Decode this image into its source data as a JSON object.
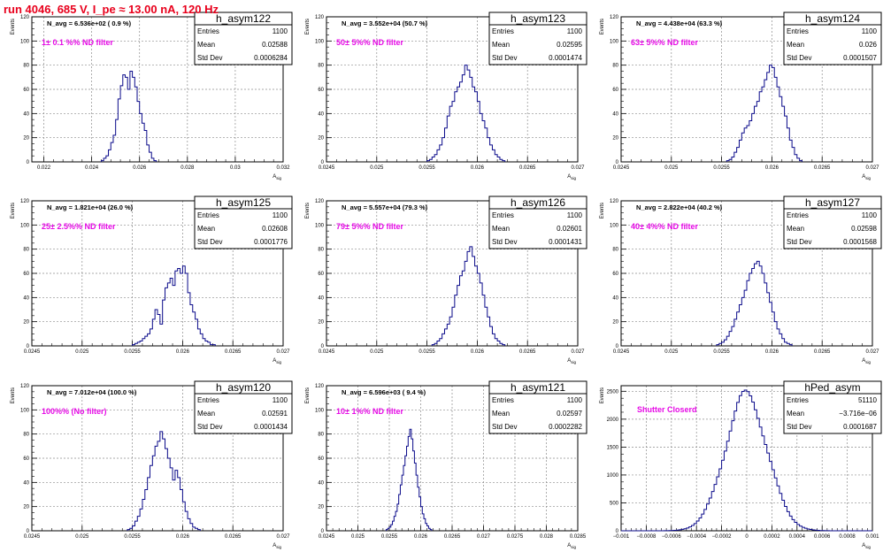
{
  "page_title": "run 4046,   685 V, I_pe ≈ 13.00 nA, 120 Hz",
  "colors": {
    "hist_line": "#0a0a8a",
    "grid": "#8c8c8c",
    "annotation": "#e60ae6",
    "title": "#e8001c"
  },
  "stat_labels": {
    "entries": "Entries",
    "mean": "Mean",
    "std_dev": "Std Dev"
  },
  "ylabel": "Events",
  "xlabel": "A_sig",
  "chart_data": [
    {
      "type": "histogram",
      "name": "h_asym122",
      "entries": "1100",
      "mean": "0.02588",
      "std_dev": "0.0006284",
      "navg_text": "N_avg = 6.536e+02 ( 0.9 %)",
      "annotation": "1± 0.1 %% ND filter",
      "xlim": [
        0.0215,
        0.032
      ],
      "ylim": [
        0,
        120
      ],
      "xticks": [
        0.022,
        0.024,
        0.026,
        0.028,
        0.03,
        0.032
      ],
      "xtick_labels": [
        "0.022",
        "0.024",
        "0.026",
        "0.028",
        "0.03",
        "0.032"
      ],
      "yticks": [
        0,
        20,
        40,
        60,
        80,
        100,
        120
      ],
      "bin_start": 0.0244,
      "bin_width": 0.0001,
      "counts": [
        1,
        3,
        5,
        10,
        16,
        22,
        35,
        52,
        63,
        72,
        70,
        60,
        75,
        70,
        62,
        50,
        40,
        32,
        26,
        14,
        8,
        3,
        1
      ]
    },
    {
      "type": "histogram",
      "name": "h_asym123",
      "entries": "1100",
      "mean": "0.02595",
      "std_dev": "0.0001474",
      "navg_text": "N_avg = 3.552e+04 (50.7 %)",
      "annotation": "50± 5%% ND filter",
      "xlim": [
        0.0245,
        0.027
      ],
      "ylim": [
        0,
        120
      ],
      "xticks": [
        0.0245,
        0.025,
        0.0255,
        0.026,
        0.0265,
        0.027
      ],
      "xtick_labels": [
        "0.0245",
        "0.025",
        "0.0255",
        "0.026",
        "0.0265",
        "0.027"
      ],
      "yticks": [
        0,
        20,
        40,
        60,
        80,
        100,
        120
      ],
      "bin_start": 0.0255,
      "bin_width": 2.5e-05,
      "counts": [
        1,
        2,
        4,
        6,
        10,
        14,
        20,
        28,
        38,
        46,
        50,
        58,
        62,
        66,
        72,
        80,
        76,
        70,
        62,
        58,
        50,
        40,
        34,
        28,
        20,
        14,
        10,
        6,
        4,
        2,
        1
      ]
    },
    {
      "type": "histogram",
      "name": "h_asym124",
      "entries": "1100",
      "mean": "0.026",
      "std_dev": "0.0001507",
      "navg_text": "N_avg = 4.438e+04 (63.3 %)",
      "annotation": "63± 5%% ND filter",
      "xlim": [
        0.0245,
        0.027
      ],
      "ylim": [
        0,
        120
      ],
      "xticks": [
        0.0245,
        0.025,
        0.0255,
        0.026,
        0.0265,
        0.027
      ],
      "xtick_labels": [
        "0.0245",
        "0.025",
        "0.0255",
        "0.026",
        "0.0265",
        "0.027"
      ],
      "yticks": [
        0,
        20,
        40,
        60,
        80,
        100,
        120
      ],
      "bin_start": 0.02555,
      "bin_width": 2.5e-05,
      "counts": [
        1,
        2,
        4,
        8,
        12,
        18,
        24,
        28,
        30,
        34,
        40,
        46,
        50,
        58,
        62,
        68,
        74,
        80,
        78,
        70,
        62,
        54,
        46,
        38,
        28,
        18,
        12,
        6,
        3,
        1
      ]
    },
    {
      "type": "histogram",
      "name": "h_asym125",
      "entries": "1100",
      "mean": "0.02608",
      "std_dev": "0.0001776",
      "navg_text": "N_avg = 1.821e+04 (26.0 %)",
      "annotation": "25± 2.5%% ND filter",
      "xlim": [
        0.0245,
        0.027
      ],
      "ylim": [
        0,
        120
      ],
      "xticks": [
        0.0245,
        0.025,
        0.0255,
        0.026,
        0.0265,
        0.027
      ],
      "xtick_labels": [
        "0.0245",
        "0.025",
        "0.0255",
        "0.026",
        "0.0265",
        "0.027"
      ],
      "yticks": [
        0,
        20,
        40,
        60,
        80,
        100,
        120
      ],
      "bin_start": 0.0255,
      "bin_width": 2.5e-05,
      "counts": [
        1,
        2,
        3,
        4,
        6,
        8,
        10,
        14,
        22,
        30,
        26,
        18,
        38,
        48,
        52,
        56,
        50,
        62,
        64,
        60,
        66,
        60,
        44,
        34,
        28,
        22,
        14,
        10,
        6,
        4,
        3,
        1,
        1
      ]
    },
    {
      "type": "histogram",
      "name": "h_asym126",
      "entries": "1100",
      "mean": "0.02601",
      "std_dev": "0.0001431",
      "navg_text": "N_avg = 5.557e+04 (79.3 %)",
      "annotation": "79± 5%% ND filter",
      "xlim": [
        0.0245,
        0.027
      ],
      "ylim": [
        0,
        120
      ],
      "xticks": [
        0.0245,
        0.025,
        0.0255,
        0.026,
        0.0265,
        0.027
      ],
      "xtick_labels": [
        "0.0245",
        "0.025",
        "0.0255",
        "0.026",
        "0.0265",
        "0.027"
      ],
      "yticks": [
        0,
        20,
        40,
        60,
        80,
        100,
        120
      ],
      "bin_start": 0.02555,
      "bin_width": 2.5e-05,
      "counts": [
        1,
        2,
        4,
        6,
        10,
        14,
        18,
        24,
        32,
        42,
        50,
        58,
        62,
        70,
        78,
        82,
        74,
        66,
        60,
        52,
        42,
        32,
        24,
        16,
        10,
        6,
        4,
        2,
        1
      ]
    },
    {
      "type": "histogram",
      "name": "h_asym127",
      "entries": "1100",
      "mean": "0.02598",
      "std_dev": "0.0001568",
      "navg_text": "N_avg = 2.822e+04 (40.2 %)",
      "annotation": "40± 4%% ND filter",
      "xlim": [
        0.0245,
        0.027
      ],
      "ylim": [
        0,
        120
      ],
      "xticks": [
        0.0245,
        0.025,
        0.0255,
        0.026,
        0.0265,
        0.027
      ],
      "xtick_labels": [
        "0.0245",
        "0.025",
        "0.0255",
        "0.026",
        "0.0265",
        "0.027"
      ],
      "yticks": [
        0,
        20,
        40,
        60,
        80,
        100,
        120
      ],
      "bin_start": 0.02545,
      "bin_width": 2.5e-05,
      "counts": [
        1,
        2,
        3,
        5,
        8,
        12,
        16,
        22,
        28,
        34,
        40,
        46,
        54,
        60,
        64,
        68,
        70,
        66,
        60,
        52,
        44,
        36,
        28,
        20,
        14,
        10,
        6,
        3,
        2,
        1
      ]
    },
    {
      "type": "histogram",
      "name": "h_asym120",
      "entries": "1100",
      "mean": "0.02591",
      "std_dev": "0.0001434",
      "navg_text": "N_avg = 7.012e+04 (100.0 %)",
      "annotation": "100%% (No filter)",
      "xlim": [
        0.0245,
        0.027
      ],
      "ylim": [
        0,
        120
      ],
      "xticks": [
        0.0245,
        0.025,
        0.0255,
        0.026,
        0.0265,
        0.027
      ],
      "xtick_labels": [
        "0.0245",
        "0.025",
        "0.0255",
        "0.026",
        "0.0265",
        "0.027"
      ],
      "yticks": [
        0,
        20,
        40,
        60,
        80,
        100,
        120
      ],
      "bin_start": 0.02545,
      "bin_width": 2.5e-05,
      "counts": [
        1,
        2,
        4,
        8,
        12,
        18,
        26,
        34,
        44,
        54,
        62,
        70,
        74,
        82,
        76,
        68,
        60,
        52,
        42,
        50,
        44,
        34,
        24,
        16,
        10,
        6,
        3,
        2,
        1
      ]
    },
    {
      "type": "histogram",
      "name": "h_asym121",
      "entries": "1100",
      "mean": "0.02597",
      "std_dev": "0.0002282",
      "navg_text": "N_avg = 6.596e+03 ( 9.4 %)",
      "annotation": "10± 1%% ND filter",
      "xlim": [
        0.0245,
        0.0285
      ],
      "ylim": [
        0,
        120
      ],
      "xticks": [
        0.0245,
        0.025,
        0.0255,
        0.026,
        0.0265,
        0.027,
        0.0275,
        0.028,
        0.0285
      ],
      "xtick_labels": [
        "0.0245",
        "0.025",
        "0.0255",
        "0.026",
        "0.0265",
        "0.027",
        "0.0275",
        "0.028",
        "0.0285"
      ],
      "yticks": [
        0,
        20,
        40,
        60,
        80,
        100,
        120
      ],
      "bin_start": 0.02545,
      "bin_width": 2.5e-05,
      "counts": [
        1,
        2,
        3,
        5,
        8,
        12,
        16,
        22,
        30,
        38,
        46,
        54,
        62,
        70,
        78,
        84,
        76,
        66,
        56,
        46,
        36,
        28,
        20,
        14,
        10,
        6,
        4,
        2,
        1
      ]
    },
    {
      "type": "histogram",
      "name": "hPed_asym",
      "entries": "51110",
      "mean": "−3.716e−06",
      "std_dev": "0.0001687",
      "navg_text": "",
      "annotation": "Shutter Closerd",
      "xlim": [
        -0.001,
        0.001
      ],
      "ylim": [
        0,
        2600
      ],
      "xticks": [
        -0.001,
        -0.0008,
        -0.0006,
        -0.0004,
        -0.0002,
        0,
        0.0002,
        0.0004,
        0.0006,
        0.0008,
        0.001
      ],
      "xtick_labels": [
        "−0.001",
        "−0.0008",
        "−0.0006",
        "−0.0004",
        "−0.0002",
        "0",
        "0.0002",
        "0.0004",
        "0.0006",
        "0.0008",
        "0.001"
      ],
      "yticks": [
        0,
        500,
        1000,
        1500,
        2000,
        2500
      ],
      "gaussian": {
        "mean": -3.7e-06,
        "sigma": 0.000168,
        "peak": 2430,
        "bin_width": 2e-05
      }
    }
  ]
}
